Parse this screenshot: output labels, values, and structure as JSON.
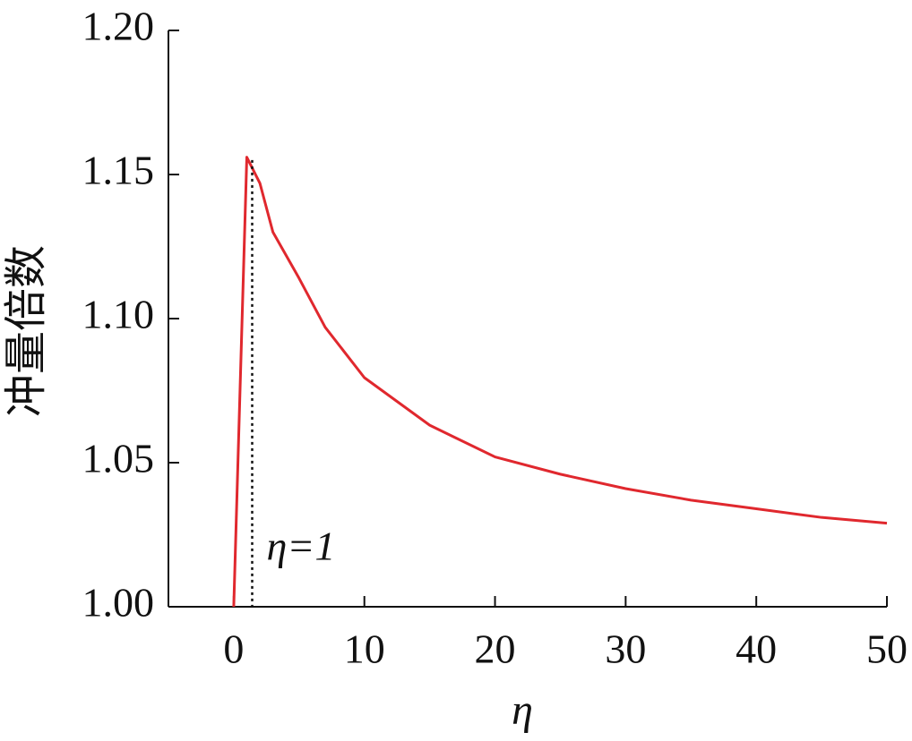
{
  "chart_data": {
    "type": "line",
    "x_label": "η",
    "y_label": "冲量倍数",
    "x": [
      0,
      1,
      2,
      3,
      5,
      7,
      10,
      15,
      20,
      25,
      30,
      35,
      40,
      45,
      50
    ],
    "series": [
      {
        "color": "#e0282e",
        "values": [
          1.0,
          1.156,
          1.147,
          1.13,
          1.114,
          1.097,
          1.0795,
          1.063,
          1.052,
          1.046,
          1.041,
          1.037,
          1.034,
          1.031,
          1.029
        ]
      }
    ],
    "xlim": [
      -5,
      50
    ],
    "ylim": [
      1.0,
      1.2
    ],
    "xticks": [
      0,
      10,
      20,
      30,
      40,
      50
    ],
    "yticks": [
      {
        "value": 1.0,
        "label": "1.00"
      },
      {
        "value": 1.05,
        "label": "1.05"
      },
      {
        "value": 1.1,
        "label": "1.10"
      },
      {
        "value": 1.15,
        "label": "1.15"
      },
      {
        "value": 1.2,
        "label": "1.20"
      }
    ],
    "annotation": {
      "text": "η=1",
      "x": 1
    }
  }
}
